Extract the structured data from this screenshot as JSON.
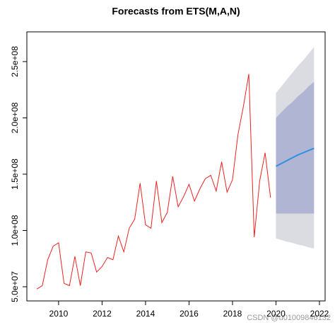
{
  "chart_data": {
    "type": "line",
    "title": "Forecasts from ETS(M,A,N)",
    "x": [
      2009,
      2009.25,
      2009.5,
      2009.75,
      2010,
      2010.25,
      2010.5,
      2010.75,
      2011,
      2011.25,
      2011.5,
      2011.75,
      2012,
      2012.25,
      2012.5,
      2012.75,
      2013,
      2013.25,
      2013.5,
      2013.75,
      2014,
      2014.25,
      2014.5,
      2014.75,
      2015,
      2015.25,
      2015.5,
      2015.75,
      2016,
      2016.25,
      2016.5,
      2016.75,
      2017,
      2017.25,
      2017.5,
      2017.75,
      2018,
      2018.25,
      2018.5,
      2018.75,
      2019,
      2019.25,
      2019.5,
      2019.75,
      2020,
      2020.25,
      2020.5,
      2020.75,
      2021,
      2021.25,
      2021.5,
      2021.75
    ],
    "series": [
      {
        "color": "#ee2222",
        "values": [
          48000000,
          51000000,
          74000000,
          86000000,
          89000000,
          53000000,
          51000000,
          77000000,
          51000000,
          81000000,
          80000000,
          63000000,
          68000000,
          76000000,
          74000000,
          95000000,
          81000000,
          102000000,
          110000000,
          142000000,
          105000000,
          102000000,
          144000000,
          107000000,
          116000000,
          148000000,
          121000000,
          130000000,
          141000000,
          126000000,
          137000000,
          146000000,
          149000000,
          135000000,
          161000000,
          134000000,
          145000000,
          185000000,
          210000000,
          239000000,
          94000000,
          144000000,
          169000000,
          129000000,
          null,
          null,
          null,
          null,
          null,
          null,
          null,
          null
        ]
      },
      {
        "color": "#2f8fe0",
        "values": [
          null,
          null,
          null,
          null,
          null,
          null,
          null,
          null,
          null,
          null,
          null,
          null,
          null,
          null,
          null,
          null,
          null,
          null,
          null,
          null,
          null,
          null,
          null,
          null,
          null,
          null,
          null,
          null,
          null,
          null,
          null,
          null,
          null,
          null,
          null,
          null,
          null,
          null,
          null,
          null,
          null,
          null,
          null,
          null,
          157000000,
          159500000,
          162000000,
          164500000,
          167000000,
          169000000,
          171000000,
          173000000
        ]
      }
    ],
    "intervals": [
      {
        "color": "#dbdbe2",
        "lower": [
          null,
          null,
          null,
          null,
          null,
          null,
          null,
          null,
          null,
          null,
          null,
          null,
          null,
          null,
          null,
          null,
          null,
          null,
          null,
          null,
          null,
          null,
          null,
          null,
          null,
          null,
          null,
          null,
          null,
          null,
          null,
          null,
          null,
          null,
          null,
          null,
          null,
          null,
          null,
          null,
          null,
          null,
          null,
          null,
          93000000,
          91500000,
          90000000,
          89000000,
          87500000,
          86500000,
          85000000,
          84000000
        ],
        "upper": [
          null,
          null,
          null,
          null,
          null,
          null,
          null,
          null,
          null,
          null,
          null,
          null,
          null,
          null,
          null,
          null,
          null,
          null,
          null,
          null,
          null,
          null,
          null,
          null,
          null,
          null,
          null,
          null,
          null,
          null,
          null,
          null,
          null,
          null,
          null,
          null,
          null,
          null,
          null,
          null,
          null,
          null,
          null,
          null,
          222000000,
          228000000,
          234000000,
          240000000,
          246000000,
          251000000,
          257000000,
          263000000
        ]
      },
      {
        "color": "#b1b5d4",
        "lower": [
          null,
          null,
          null,
          null,
          null,
          null,
          null,
          null,
          null,
          null,
          null,
          null,
          null,
          null,
          null,
          null,
          null,
          null,
          null,
          null,
          null,
          null,
          null,
          null,
          null,
          null,
          null,
          null,
          null,
          null,
          null,
          null,
          null,
          null,
          null,
          null,
          null,
          null,
          null,
          null,
          null,
          null,
          null,
          null,
          115000000,
          115000000,
          115000000,
          115000000,
          115000000,
          115000000,
          115000000,
          115000000
        ],
        "upper": [
          null,
          null,
          null,
          null,
          null,
          null,
          null,
          null,
          null,
          null,
          null,
          null,
          null,
          null,
          null,
          null,
          null,
          null,
          null,
          null,
          null,
          null,
          null,
          null,
          null,
          null,
          null,
          null,
          null,
          null,
          null,
          null,
          null,
          null,
          null,
          null,
          null,
          null,
          null,
          null,
          null,
          null,
          null,
          null,
          200000000,
          205000000,
          210000000,
          214000000,
          219000000,
          223000000,
          228000000,
          232000000
        ]
      }
    ],
    "xlim": [
      2008.54,
      2022.26
    ],
    "ylim": [
      37400000,
      276400000
    ],
    "xticks": [
      2010,
      2012,
      2014,
      2016,
      2018,
      2020,
      2022
    ],
    "yticks": [
      {
        "value": 50000000,
        "label": "5.0e+07"
      },
      {
        "value": 100000000,
        "label": "1.0e+08"
      },
      {
        "value": 150000000,
        "label": "1.5e+08"
      },
      {
        "value": 200000000,
        "label": "2.0e+08"
      },
      {
        "value": 250000000,
        "label": "2.5e+08"
      }
    ],
    "watermark": "CSDN @u01009846132"
  }
}
